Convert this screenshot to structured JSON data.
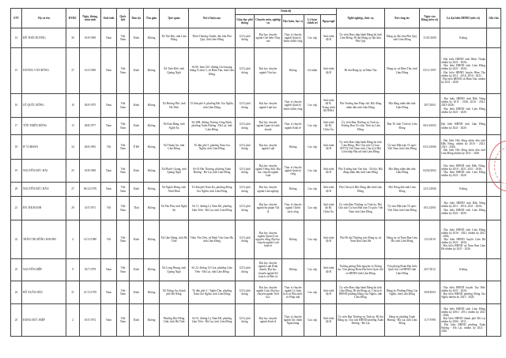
{
  "headers": {
    "stt": "STT",
    "name": "Họ và tên",
    "dvbc": "ĐVBC",
    "dob": "Ngày, tháng, năm sinh",
    "gender": "Giới tính",
    "nationality": "Quốc tịch",
    "ethnicity": "Dân tộc",
    "religion": "Tôn giáo",
    "hometown": "Quê quán",
    "residence": "Nơi ở hiện nay",
    "education_group": "Trình độ",
    "general_edu": "Giáo dục phổ thông",
    "specialty": "Chuyên môn, nghiệp vụ",
    "degree": "Học hàm, học vị",
    "politics": "Lý luận chính trị",
    "language": "Ngoại ngữ",
    "position": "Nghề nghiệp, chức vụ",
    "workplace": "Nơi công tác",
    "party_date": "Ngày vào Đảng (nếu có)",
    "delegate": "Là đại biểu HĐND (nếu có)",
    "note": "Ghi chú"
  },
  "rows": [
    {
      "stt": "14",
      "name": "Đỗ Thái Dương",
      "dvbc": "30",
      "dob": "01/8/1969",
      "gender": "Nam",
      "nationality": "Việt Nam",
      "ethnicity": "Kinh",
      "religion": "Không",
      "hometown": "Xã Tân Hải, tỉnh Lâm Đồng",
      "residence": "Thôn Thương Chánh, đặc khu Phú Quý, tỉnh Lâm Đồng",
      "general_edu": "12/12 phổ thông",
      "specialty": "Đại học chuyên ngành Chế biến Thủy sản",
      "degree": "Thạc sĩ chuyên ngành Quản lý hành chính công",
      "politics": "Cao cấp",
      "language": "Anh trình độ B",
      "position": "Ủy viên Ban chấp hành Đảng bộ tỉnh Lâm Đồng, Bí thư Đảng ủy đặc khu Phú Quý",
      "workplace": "Đảng ủy đặc khu Phú Quý, tỉnh Lâm Đồng",
      "party_date": "31/01/2000",
      "delegate": "Không",
      "note": ""
    },
    {
      "stt": "15",
      "name": "Dương Văn Đông",
      "dvbc": "27",
      "dob": "14/3/1969",
      "gender": "Nam",
      "nationality": "Việt Nam",
      "ethnicity": "Kinh",
      "religion": "Không",
      "hometown": "Xã Tịnh Khê, tỉnh Quảng Ngãi",
      "residence": "Số 06, hẻm 225, đường Cách mạng tháng 8, thôn 3, xã Hàm Tân, tỉnh Lâm Đồng",
      "general_edu": "12/12 phổ thông",
      "specialty": "Đại học chuyên ngành Văn học",
      "degree": "Không",
      "politics": "Cử nhân",
      "language": "Anh trình độ B",
      "position": "Bí thư Đảng ủy xã Hàm Tân",
      "workplace": "Đảng ủy xã Hàm Tân, tỉnh Lâm Đồng",
      "party_date": "05/11/1997",
      "delegate": "- Đại biểu HĐND tỉnh Bình Thuận nhiệm kỳ 2021 - 2026;\n- Đại biểu HĐND tỉnh Lâm Đồng nhiệm kỳ 2021 - 2026;\n- Đại biểu HĐND huyện Hàm Tân nhiệm kỳ 2011 - 2016, 2016 - 2021;\n- Đại biểu HĐND xã Hàm Tân, nhiệm kỳ 2021 - 2026",
      "note": ""
    },
    {
      "stt": "16",
      "name": "Lê Quốc Đông",
      "dvbc": "10",
      "dob": "30/9/1979",
      "gender": "Nam",
      "nationality": "Việt Nam",
      "ethnicity": "Kinh",
      "religion": "Không",
      "hometown": "Xã Hương Phố, tỉnh Hà Tĩnh",
      "residence": "Tổ dân phố 6, phường Bắc Gia Nghĩa, tỉnh Lâm Đồng",
      "general_edu": "12/12 phổ thông",
      "specialty": "Đại học chuyên ngành Luật học",
      "degree": "Thạc sĩ chuyên ngành Quản lý hành chính công",
      "politics": "Cao cấp",
      "language": "Anh trình độ B, Trung trình độ HSK4",
      "position": "Phó Trưởng ban Pháp chế, Hội đồng nhân dân tỉnh Lâm Đồng",
      "workplace": "Hội đồng nhân dân tỉnh Lâm Đồng",
      "party_date": "20/7/2004",
      "delegate": "- Đại biểu HĐND tỉnh Đắk Nông nhiệm kỳ 2011 - 2016, 2016 - 2021, 2021-2026;\n- Đại biểu HĐND tỉnh Lâm Đồng nhiệm kỳ 2021 - 2026",
      "note": ""
    },
    {
      "stt": "17",
      "name": "Tôn Thiện Đông",
      "dvbc": "13",
      "dob": "28/8/1977",
      "gender": "Nam",
      "nationality": "Việt Nam",
      "ethnicity": "Kinh",
      "religion": "Không",
      "hometown": "Xã Kim Bảng, tỉnh Nghệ An",
      "residence": "Số 40B, đường Trương Công Định, phường Xuân Hương - Đà Lạt, tỉnh Lâm Đồng",
      "general_edu": "12/12 phổ thông",
      "specialty": "Đại học chuyên ngành Quản trị kinh doanh",
      "degree": "Thạc sĩ chuyên ngành Kinh tế",
      "politics": "Cao cấp",
      "language": "Anh trình độ B1 Châu Âu",
      "position": "Ủy viên Ban Thường vụ Tỉnh ủy, Trưởng Ban Tổ chức Tỉnh ủy Lâm Đồng",
      "workplace": "Ban Tổ chức Tỉnh ủy Lâm Đồng",
      "party_date": "06/10/2003",
      "delegate": "Đại biểu HĐND tỉnh Lâm Đồng nhiệm kỳ 2021 - 2026",
      "note": ""
    },
    {
      "stt": "18",
      "name": "H' Yi Đhan",
      "dvbc": "34",
      "dob": "26/6/1981",
      "gender": "Nữ",
      "nationality": "Việt Nam",
      "ethnicity": "Ê Đê",
      "religion": "Không",
      "hometown": "Xã Thuận An, tỉnh Lâm Đồng",
      "residence": "Tổ dân phố 5, phường Nam Gia Nghĩa, tỉnh Lâm Đồng",
      "general_edu": "12/12 phổ thông",
      "specialty": "Đại học chuyên ngành Luật",
      "degree": "Không",
      "politics": "Cao cấp",
      "language": "Anh trình độ B",
      "position": "Ủy viên Ban chấp hành Đảng bộ tỉnh Lâm Đồng, Phó Chủ tịch Ủy ban MTTQ Việt Nam tỉnh, Chủ tịch Hội Liên hiệp Phụ nữ tỉnh Lâm Đồng",
      "workplace": "Ủy ban Mặt trận Tổ quốc Việt Nam tỉnh Lâm Đồng",
      "party_date": "03/12/2006",
      "delegate": "- Đại biểu Hội đồng nhân dân tỉnh Đắk Nông, nhiệm kỳ 2016 - 2021, 2021 - 2026;\n- Đại biểu Hội đồng nhân dân tỉnh Lâm Đồng nhiệm kỳ 2021 - 2026",
      "note": ""
    },
    {
      "stt": "19",
      "name": "Nguyễn Đức Hải",
      "dvbc": "25",
      "dob": "01/8/1969",
      "gender": "Nam",
      "nationality": "Việt Nam",
      "ethnicity": "Kinh",
      "religion": "Không",
      "hometown": "Xã Phước Giang, tỉnh Quảng Ngãi",
      "residence": "Số 03 Hải Thượng, phường Xuân Hương - Đà Lạt, tỉnh Lâm Đồng",
      "general_edu": "12/12 phổ thông",
      "specialty": "Đại học chuyên ngành Tiếng Anh, Đại học chuyên ngành Luật",
      "degree": "Thạc sĩ chuyên ngành Quản lý công",
      "politics": "Cao cấp",
      "language": "Anh trình độ B",
      "position": "Phó Trưởng ban Văn hóa - Xã hội, Hội đồng nhân dân tỉnh Lâm Đồng",
      "workplace": "Hội đồng nhân dân tỉnh Lâm Đồng",
      "party_date": "04/02/2002",
      "delegate": "- Đại biểu HĐND tỉnh Đắk Nông, nhiệm kỳ 2016 - 2021, 2021 - 2026;\n- Đại biểu HĐND tỉnh Lâm Đồng nhiệm kỳ 2021 - 2026",
      "note": ""
    },
    {
      "stt": "20",
      "name": "Nguyễn Đức Hân",
      "dvbc": "27",
      "dob": "06/12/1976",
      "gender": "Nam",
      "nationality": "Việt Nam",
      "ethnicity": "Kinh",
      "religion": "Không",
      "hometown": "Xã Nghĩa Hưng, tỉnh Ninh Bình",
      "residence": "Tổ dân phố Nam Ka, phường Đông Gia Nghĩa, tỉnh Lâm Đồng",
      "general_edu": "12/12 phổ thông",
      "specialty": "Đại học chuyên ngành Lâm nghiệp",
      "degree": "Không",
      "politics": "Cao cấp",
      "language": "Anh trình độ B",
      "position": "Phó Chủ tịch Hội Nông dân tỉnh Lâm Đồng",
      "workplace": "Hội Nông dân tỉnh Lâm Đồng",
      "party_date": "22/12/2006",
      "delegate": "Không",
      "note": ""
    },
    {
      "stt": "21",
      "name": "Hà Thị Hạnh",
      "dvbc": "29",
      "dob": "31/5/1971",
      "gender": "Nữ",
      "nationality": "Việt Nam",
      "ethnicity": "Thái",
      "religion": "Không",
      "hometown": "Xã Tân Phú, tỉnh Nghệ An",
      "residence": "Số 11, đường Lý Nam Đế, phường Lâm Viên - Đà Lạt, tỉnh Lâm Đồng",
      "general_edu": "12/12 phổ thông",
      "specialty": "Đại học chuyên ngành Sư phạm Vật lý",
      "degree": "Thạc sĩ chuyên ngành Chính sách công",
      "politics": "Cao cấp",
      "language": "Anh trình độ B1 Châu Âu",
      "position": "Ủy viên Ban Thường vụ Tỉnh ủy, Phó Chủ tịch Ủy ban Mặt trận Tổ quốc Việt Nam tỉnh Lâm Đồng",
      "workplace": "Ủy ban Mặt trận Tổ quốc Việt Nam tỉnh Lâm Đồng",
      "party_date": "10/12/2001",
      "delegate": "- Đại biểu HĐND tỉnh Đắk Nông nhiệm kỳ 2011 - 2016, 2021 - 2026;\n- Đại biểu HĐND tỉnh Lâm Đồng nhiệm kỳ 2021 - 2026",
      "note": ""
    },
    {
      "stt": "22",
      "name": "Trần Thị Hồng Khanh",
      "dvbc": "4",
      "dob": "14/11/1980",
      "gender": "Nữ",
      "nationality": "Việt Nam",
      "ethnicity": "Kinh",
      "religion": "Không",
      "hometown": "Xã Cẩm Hưng, tỉnh Hà Tĩnh",
      "residence": "Thôn Tân Tiến, xã Đinh Văn Lâm Hà, tỉnh Lâm Đồng",
      "general_edu": "12/12 phổ thông",
      "specialty": "Đại học chuyên ngành Quản lý tài nguyên rừng; Đại học chuyên ngành Luật kinh tế",
      "degree": "Không",
      "politics": "Cao cấp",
      "language": "Anh trình độ B",
      "position": "Phó Bí thư Thường trực Đảng ủy xã Nam Ban Lâm Hà",
      "workplace": "Đảng ủy xã Nam Ban Lâm Hà, tỉnh Lâm Đồng",
      "party_date": "12/3/2010",
      "delegate": "- Đại biểu HĐND tỉnh Lâm Đồng nhiệm kỳ 2016 - 2021, nhiệm kỳ 2021 - 2026;\n- Đại biểu HĐND huyện Lâm Hà nhiệm kỳ 2021 - 2026;\n- Đại biểu HĐND xã Nam Ban Lâm Hà nhiệm kỳ 2021 - 2026",
      "note": ""
    },
    {
      "stt": "23",
      "name": "Nguyễn Hiệp",
      "dvbc": "9",
      "dob": "18/7/1978",
      "gender": "Nam",
      "nationality": "Việt Nam",
      "ethnicity": "Kinh",
      "religion": "Không",
      "hometown": "Xã Long Phụng, tỉnh Quảng Ngãi",
      "residence": "Số 22, đường Lê Góa, phường Lâm Viên - Đà Lạt, tỉnh Lâm Đồng",
      "general_edu": "12/12 phổ thông",
      "specialty": "Đại học chuyên ngành Luật Kinh doanh, Đại học chuyên ngành Kế hoạch và Đầu tư",
      "degree": "Không",
      "politics": "Cao cấp",
      "language": "Anh trình độ B",
      "position": "Trưởng phòng Dân nguyện và Thông tin, Văn phòng Đoàn Đại biểu Quốc hội và HĐND tỉnh Lâm Đồng",
      "workplace": "Văn phòng Đoàn Đại biểu Quốc hội và HĐND tỉnh Lâm Đồng",
      "party_date": "26/7/2012",
      "delegate": "Không",
      "note": ""
    },
    {
      "stt": "24",
      "name": "Hồ Xuân Hậu",
      "dvbc": "31",
      "dob": "21/11/1976",
      "gender": "Nam",
      "nationality": "Việt Nam",
      "ethnicity": "Kinh",
      "religion": "Không",
      "hometown": "Xã Thăng An, thành phố Đà Nẵng",
      "residence": "Tổ dân phố 4 - Nghĩa Tân, phường Nam Gia Nghĩa, tỉnh Lâm Đồng",
      "general_edu": "12/12 phổ thông",
      "specialty": "Đại học chuyên ngành Luật, Đại học chuyên ngành Triết học",
      "degree": "Thạc sĩ chuyên ngành Lý luận lịch sử Nhà nước và Pháp luật",
      "politics": "Cao cấp",
      "language": "Anh trình độ B",
      "position": "Ủy viên Ban chấp hành Đảng bộ tỉnh Lâm Đồng, Bí thư Đảng ủy, Chủ tịch HĐND phường Đông Gia Nghĩa, tỉnh Lâm Đồng",
      "workplace": "Đảng ủy Phường Đông Gia Nghĩa, tỉnh Lâm Đồng",
      "party_date": "29/8/2004",
      "delegate": "- Đại biểu HĐND huyện Tuy Đức nhiệm kỳ 2021 - 2026;\n- Đại biểu HĐND phường Đông Gia Nghĩa nhiệm kỳ 2021 - 2026",
      "note": ""
    },
    {
      "stt": "25",
      "name": "Đặng Đức Hiệp",
      "dvbc": "2",
      "dob": "01/5/1972",
      "gender": "Nam",
      "nationality": "Việt Nam",
      "ethnicity": "Kinh",
      "religion": "Không",
      "hometown": "Phường Bắc Hồng Lĩnh, tỉnh Hà Tĩnh",
      "residence": "Số 01, đường Lý Nam Đế, phường Lâm Viên - Đà Lạt, tỉnh Lâm Đồng",
      "general_edu": "12/12 phổ thông",
      "specialty": "Đại học chuyên ngành Kinh tế",
      "degree": "Thạc sĩ chuyên ngành Tài chính Ngân hàng",
      "politics": "Cao cấp",
      "language": "Anh trình độ B",
      "position": "Ủy viên Ban Thường vụ Tỉnh ủy, Bí thư Đảng ủy, Chủ tịch HĐND phường Xuân Hương - Đà Lạt",
      "workplace": "Đảng ủy phường Xuân Hương - Đà Lạt, tỉnh Lâm Đồng",
      "party_date": "11/7/1998",
      "delegate": "- Đại biểu HĐND tỉnh Lâm Đồng nhiệm kỳ 2004 - 2011, nhiệm kỳ 2021 - 2026;\n- Đại biểu HĐND thành phố Đà Lạt nhiệm kỳ 2004 - 2011;\n- Đại biểu HĐND phường Xuân Hương - Đà Lạt, nhiệm kỳ 2021 - 2026",
      "note": ""
    }
  ],
  "colors": {
    "stamp": "#d9404a",
    "border": "#444444"
  }
}
